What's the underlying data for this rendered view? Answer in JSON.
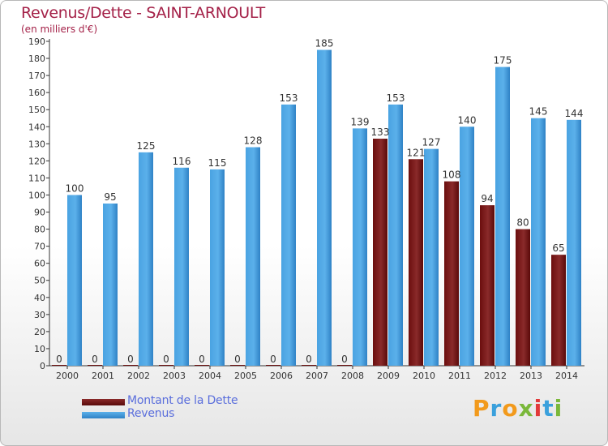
{
  "title": "Revenus/Dette - SAINT-ARNOULT",
  "subtitle": "(en milliers d'€)",
  "chart_data": {
    "type": "bar",
    "title": "Revenus/Dette - SAINT-ARNOULT",
    "subtitle": "(en milliers d'€)",
    "categories": [
      "2000",
      "2001",
      "2002",
      "2003",
      "2004",
      "2005",
      "2006",
      "2007",
      "2008",
      "2009",
      "2010",
      "2011",
      "2012",
      "2013",
      "2014"
    ],
    "series": [
      {
        "name": "Montant de la Dette",
        "color": "#7a1616",
        "values": [
          0,
          0,
          0,
          0,
          0,
          0,
          0,
          0,
          0,
          133,
          121,
          108,
          94,
          80,
          65
        ]
      },
      {
        "name": "Revenus",
        "color": "#3d94d9",
        "values": [
          100,
          95,
          125,
          116,
          115,
          128,
          153,
          185,
          139,
          153,
          127,
          140,
          175,
          145,
          144
        ]
      }
    ],
    "ylim": [
      0,
      190
    ],
    "ytick_step": 10,
    "grid": false,
    "legend_position": "bottom-left"
  },
  "legend": [
    {
      "label": "Montant de la Dette",
      "color": "#6b0e0e"
    },
    {
      "label": "Revenus",
      "color": "#4aa3e2"
    }
  ],
  "logo": {
    "letters": [
      "P",
      "r",
      "o",
      "x",
      "i",
      "t",
      "i"
    ],
    "colors": [
      "#f29a1c",
      "#3aa0dc",
      "#f29a1c",
      "#7ab83a",
      "#e23a3a",
      "#3aa0dc",
      "#7ab83a"
    ]
  }
}
